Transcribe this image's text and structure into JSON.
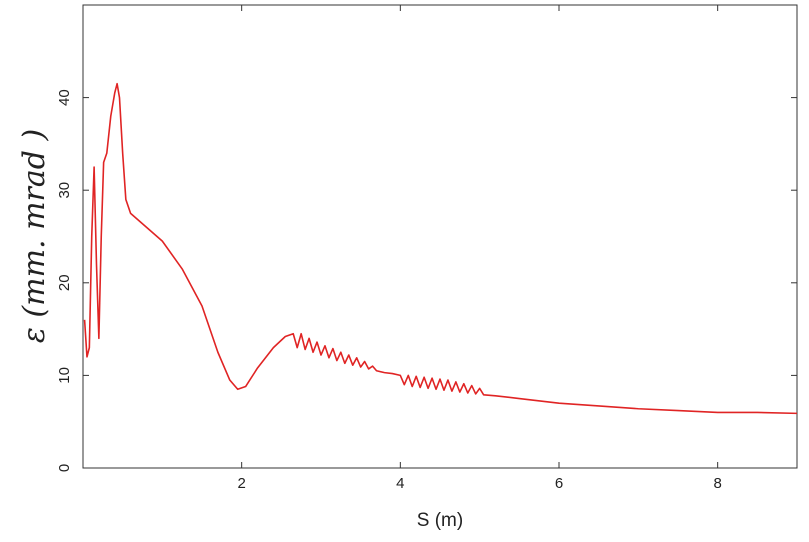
{
  "chart_data": {
    "type": "line",
    "x_label": "S (m)",
    "y_label": "ε (mm. mrad )",
    "xlim": [
      0,
      9
    ],
    "ylim": [
      0,
      50
    ],
    "xticks": [
      2,
      4,
      6,
      8
    ],
    "yticks": [
      0,
      10,
      20,
      30,
      40
    ],
    "grid": false,
    "series": [
      {
        "color": "#e02424",
        "x": [
          0.02,
          0.05,
          0.08,
          0.11,
          0.14,
          0.17,
          0.2,
          0.23,
          0.26,
          0.3,
          0.35,
          0.4,
          0.43,
          0.46,
          0.5,
          0.54,
          0.6,
          0.8,
          1.0,
          1.25,
          1.5,
          1.7,
          1.85,
          1.95,
          2.05,
          2.2,
          2.4,
          2.55,
          2.65,
          2.7,
          2.75,
          2.8,
          2.85,
          2.9,
          2.95,
          3.0,
          3.05,
          3.1,
          3.15,
          3.2,
          3.25,
          3.3,
          3.35,
          3.4,
          3.45,
          3.5,
          3.55,
          3.6,
          3.65,
          3.7,
          3.8,
          3.9,
          4.0,
          4.05,
          4.1,
          4.15,
          4.2,
          4.25,
          4.3,
          4.35,
          4.4,
          4.45,
          4.5,
          4.55,
          4.6,
          4.65,
          4.7,
          4.75,
          4.8,
          4.85,
          4.9,
          4.95,
          5.0,
          5.05,
          5.2,
          5.5,
          6.0,
          6.5,
          7.0,
          7.5,
          8.0,
          8.5,
          9.0
        ],
        "values": [
          16,
          12,
          13,
          25,
          32.5,
          22,
          14,
          25,
          33,
          34,
          38,
          40.5,
          41.5,
          40,
          34,
          29,
          27.5,
          26,
          24.5,
          21.5,
          17.5,
          12.5,
          9.5,
          8.5,
          8.8,
          10.8,
          13,
          14.2,
          14.5,
          13,
          14.5,
          12.8,
          14,
          12.5,
          13.6,
          12.2,
          13.2,
          11.9,
          12.9,
          11.6,
          12.5,
          11.3,
          12.2,
          11.1,
          11.9,
          10.9,
          11.5,
          10.7,
          11,
          10.5,
          10.3,
          10.2,
          10,
          9,
          10,
          8.8,
          9.9,
          8.7,
          9.8,
          8.6,
          9.7,
          8.5,
          9.6,
          8.4,
          9.5,
          8.3,
          9.3,
          8.2,
          9.1,
          8.1,
          8.9,
          8,
          8.6,
          7.9,
          7.8,
          7.5,
          7,
          6.7,
          6.4,
          6.2,
          6,
          6,
          5.9
        ]
      }
    ]
  }
}
